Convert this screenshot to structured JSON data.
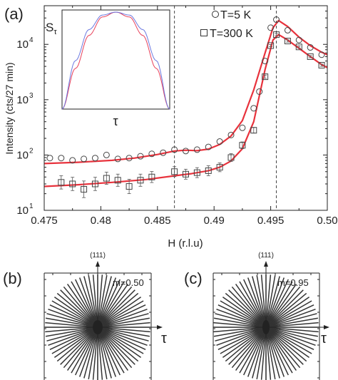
{
  "chart_data": [
    {
      "type": "scatter",
      "panel_label": "(a)",
      "xlabel": "H (r.l.u)",
      "ylabel": "Intensity (cts/27 min)",
      "xlim": [
        0.475,
        0.5
      ],
      "ylim": [
        10,
        50000
      ],
      "yscale": "log",
      "x_ticks": [
        0.475,
        0.48,
        0.485,
        0.49,
        0.495,
        0.5
      ],
      "x_tick_labels": [
        "0.475",
        "0.48",
        "0.485",
        "0.49",
        "0.495",
        "0.50"
      ],
      "y_ticks": [
        10,
        100,
        1000,
        10000
      ],
      "y_tick_base": "10",
      "y_tick_exponents": [
        "1",
        "2",
        "3",
        "4"
      ],
      "vlines": [
        0.4865,
        0.4955
      ],
      "legend_position": "top-right",
      "fit_color": "#e8323c",
      "series": [
        {
          "name": "T=5 K",
          "marker": "circle",
          "x": [
            0.4755,
            0.4765,
            0.4775,
            0.4785,
            0.4795,
            0.4805,
            0.4815,
            0.4825,
            0.4835,
            0.4845,
            0.4855,
            0.4865,
            0.4875,
            0.4885,
            0.4895,
            0.4905,
            0.4915,
            0.4925,
            0.4935,
            0.494,
            0.4945,
            0.495,
            0.4955,
            0.4965,
            0.4975,
            0.4985,
            0.4995
          ],
          "y": [
            88,
            88,
            80,
            85,
            88,
            100,
            85,
            88,
            95,
            105,
            110,
            125,
            118,
            125,
            140,
            175,
            230,
            310,
            700,
            1400,
            5000,
            20000,
            28000,
            18000,
            12000,
            8800,
            6500
          ],
          "fit": [
            [
              0.475,
              70
            ],
            [
              0.478,
              74
            ],
            [
              0.481,
              80
            ],
            [
              0.483,
              88
            ],
            [
              0.485,
              102
            ],
            [
              0.4865,
              118
            ],
            [
              0.4875,
              122
            ],
            [
              0.4885,
              120
            ],
            [
              0.4895,
              128
            ],
            [
              0.4905,
              155
            ],
            [
              0.4915,
              220
            ],
            [
              0.4925,
              420
            ],
            [
              0.4935,
              1500
            ],
            [
              0.4945,
              7000
            ],
            [
              0.4952,
              20000
            ],
            [
              0.4957,
              27000
            ],
            [
              0.4965,
              21000
            ],
            [
              0.4975,
              13500
            ],
            [
              0.4985,
              9500
            ],
            [
              0.4995,
              7200
            ],
            [
              0.5,
              6500
            ]
          ]
        },
        {
          "name": "T=300 K",
          "marker": "square",
          "x": [
            0.4765,
            0.4775,
            0.4785,
            0.4795,
            0.4805,
            0.4815,
            0.4825,
            0.4835,
            0.4845,
            0.4865,
            0.4875,
            0.4885,
            0.4895,
            0.4905,
            0.4915,
            0.4925,
            0.4935,
            0.4945,
            0.495,
            0.4955,
            0.4965,
            0.4975,
            0.4985,
            0.4995
          ],
          "y": [
            32,
            30,
            24,
            30,
            38,
            35,
            27,
            35,
            40,
            50,
            45,
            48,
            52,
            60,
            90,
            150,
            280,
            2600,
            9500,
            15000,
            11500,
            9000,
            6000,
            4200
          ],
          "error": [
            0.12,
            0.12,
            0.15,
            0.12,
            0.11,
            0.11,
            0.13,
            0.11,
            0.1,
            0.09,
            0.09,
            0.09,
            0.09,
            0.08,
            0.07,
            0.06,
            0.05,
            0.03,
            0.02,
            0.02,
            0.02,
            0.02,
            0.02,
            0.02
          ],
          "fit": [
            [
              0.475,
              27
            ],
            [
              0.478,
              29
            ],
            [
              0.481,
              32
            ],
            [
              0.484,
              36
            ],
            [
              0.4865,
              42
            ],
            [
              0.488,
              46
            ],
            [
              0.4895,
              52
            ],
            [
              0.4905,
              60
            ],
            [
              0.4915,
              78
            ],
            [
              0.4925,
              130
            ],
            [
              0.4935,
              400
            ],
            [
              0.4945,
              3500
            ],
            [
              0.4952,
              12000
            ],
            [
              0.4957,
              15000
            ],
            [
              0.4965,
              12000
            ],
            [
              0.4975,
              8500
            ],
            [
              0.4985,
              6000
            ],
            [
              0.4995,
              4300
            ],
            [
              0.5,
              3800
            ]
          ]
        }
      ]
    },
    {
      "type": "line",
      "panel_label": "inset",
      "xlabel": "τ",
      "ylabel_main": "S",
      "ylabel_sub": "τ",
      "series": [
        {
          "color": "#e8405a",
          "x": [
            -1,
            -0.75,
            -0.5,
            -0.25,
            0,
            0.25,
            0.5,
            0.75,
            1
          ],
          "y": [
            0.0,
            0.42,
            0.76,
            0.95,
            1.0,
            0.95,
            0.76,
            0.42,
            0.0
          ]
        },
        {
          "color": "#6b78e0",
          "x": [
            -1,
            -0.75,
            -0.5,
            -0.25,
            0,
            0.25,
            0.5,
            0.75,
            1
          ],
          "y": [
            0.0,
            0.5,
            0.82,
            0.97,
            1.0,
            0.97,
            0.82,
            0.5,
            0.0
          ]
        }
      ]
    },
    {
      "type": "diagram",
      "panel_label": "(b)",
      "axis_top_label": "(111)",
      "axis_right_label": "τ",
      "m_label": "m=0.50",
      "m": 0.5,
      "n_lines": 36
    },
    {
      "type": "diagram",
      "panel_label": "(c)",
      "axis_top_label": "(111)",
      "axis_right_label": "τ",
      "m_label": "m=0.95",
      "m": 0.95,
      "n_lines": 36
    }
  ]
}
